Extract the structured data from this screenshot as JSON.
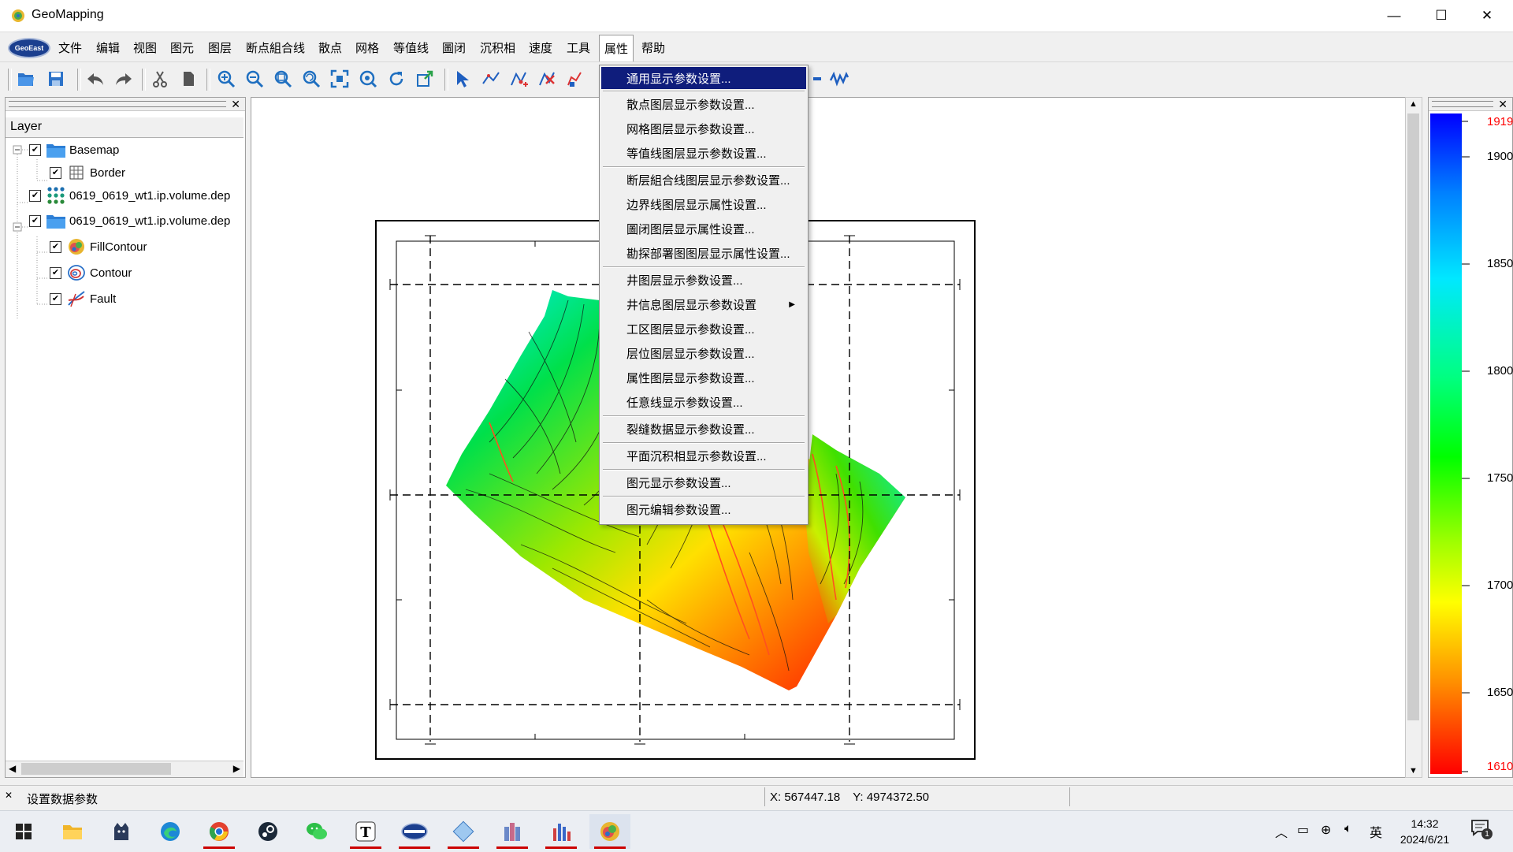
{
  "window": {
    "title": "GeoMapping",
    "minimize": "—",
    "maximize": "☐",
    "close": "✕"
  },
  "menubar": {
    "logo": "GeoEast",
    "items": [
      "文件",
      "编辑",
      "视图",
      "图元",
      "图层",
      "断点組合线",
      "散点",
      "网格",
      "等值线",
      "圖闭",
      "沉积相",
      "速度",
      "工具",
      "属性",
      "帮助"
    ],
    "open_menu": "属性"
  },
  "dropdown": {
    "items": [
      "通用显示参数设置...",
      "散点图层显示参数设置...",
      "网格图层显示参数设置...",
      "等值线图层显示参数设置...",
      "断层組合线图层显示参数设置...",
      "边界线图层显示属性设置...",
      "圖闭图层显示属性设置...",
      "勘探部署图图层显示属性设置...",
      "井图层显示参数设置...",
      "井信息图层显示参数设置",
      "工区图层显示参数设置...",
      "层位图层显示参数设置...",
      "属性图层显示参数设置...",
      "任意线显示参数设置...",
      "裂缝数据显示参数设置...",
      "平面沉积相显示参数设置...",
      "图元显示参数设置...",
      "图元编辑参数设置..."
    ],
    "highlighted": "通用显示参数设置...",
    "submenu_item": "井信息图层显示参数设置"
  },
  "layer_panel": {
    "header": "Layer",
    "tree": [
      {
        "label": "Basemap",
        "checked": true,
        "icon": "folder-icon"
      },
      {
        "label": "Border",
        "checked": true,
        "icon": "border-grid-icon"
      },
      {
        "label": "0619_0619_wt1.ip.volume.dep",
        "checked": true,
        "icon": "scatter-points-icon"
      },
      {
        "label": "0619_0619_wt1.ip.volume.dep",
        "checked": true,
        "icon": "folder-icon"
      },
      {
        "label": "FillContour",
        "checked": true,
        "icon": "fill-contour-icon"
      },
      {
        "label": "Contour",
        "checked": true,
        "icon": "contour-icon"
      },
      {
        "label": "Fault",
        "checked": true,
        "icon": "fault-icon"
      }
    ]
  },
  "colorbar": {
    "max_label": "1919.2",
    "min_label": "1610.0",
    "max_label_color": "#ff0000",
    "ticks": [
      "1900.0",
      "1850.0",
      "1800.0",
      "1750.0",
      "1700.0",
      "1650.0"
    ]
  },
  "statusbar": {
    "message": "设置数据参数",
    "x_label": "X: 567447.18",
    "y_label": "Y: 4974372.50"
  },
  "taskbar": {
    "apps": [
      "start-icon",
      "file-explorer-icon",
      "cat-app-icon",
      "edge-icon",
      "chrome-icon",
      "steam-icon",
      "wechat-icon",
      "typora-icon",
      "geoeast-icon",
      "diamond-app-icon",
      "castle-app-icon",
      "chart-app-icon",
      "geomapping-icon"
    ],
    "ime": "英",
    "time": "14:32",
    "date": "2024/6/21",
    "notification_count": "1"
  }
}
